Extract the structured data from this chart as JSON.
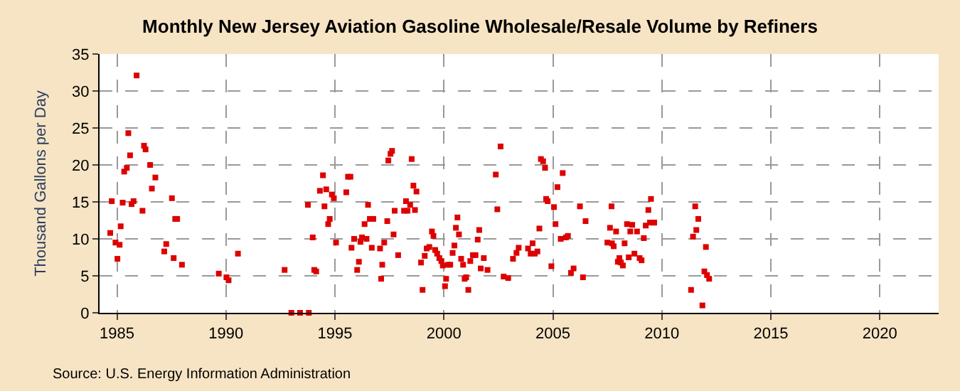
{
  "chart_data": {
    "type": "scatter",
    "title": "Monthly New Jersey Aviation Gasoline Wholesale/Resale Volume by Refiners",
    "ylabel": "Thousand Gallons per Day",
    "annotations": [
      "Source: U.S. Energy Information Administration"
    ],
    "xlim": [
      1984.2,
      2022.7
    ],
    "xticks": [
      1985,
      1990,
      1995,
      2000,
      2005,
      2010,
      2015,
      2020
    ],
    "ylim": [
      0,
      35
    ],
    "yticks": [
      0,
      5,
      10,
      15,
      20,
      25,
      30,
      35
    ],
    "grid": true,
    "marker": "square",
    "series": [
      {
        "color": "#dd0000",
        "x": [
          1984.69,
          1984.76,
          1984.93,
          1985.02,
          1985.12,
          1985.17,
          1985.26,
          1985.33,
          1985.45,
          1985.52,
          1985.6,
          1985.67,
          1985.76,
          1985.9,
          1986.17,
          1986.24,
          1986.31,
          1986.52,
          1986.6,
          1986.76,
          1987.17,
          1987.26,
          1987.52,
          1987.6,
          1987.67,
          1987.76,
          1987.98,
          1989.67,
          1990.02,
          1990.12,
          1990.55,
          1992.69,
          1993.0,
          1993.4,
          1993.76,
          1993.8,
          1993.98,
          1994.05,
          1994.14,
          1994.31,
          1994.45,
          1994.52,
          1994.6,
          1994.69,
          1994.76,
          1994.86,
          1994.95,
          1995.05,
          1995.52,
          1995.6,
          1995.71,
          1995.76,
          1995.88,
          1996.02,
          1996.1,
          1996.17,
          1996.24,
          1996.36,
          1996.45,
          1996.52,
          1996.6,
          1996.69,
          1996.76,
          1997.07,
          1997.12,
          1997.17,
          1997.26,
          1997.4,
          1997.45,
          1997.55,
          1997.62,
          1997.69,
          1997.74,
          1997.9,
          1998.17,
          1998.26,
          1998.33,
          1998.45,
          1998.52,
          1998.6,
          1998.67,
          1998.74,
          1998.95,
          1999.02,
          1999.12,
          1999.21,
          1999.33,
          1999.45,
          1999.52,
          1999.6,
          1999.69,
          1999.79,
          1999.88,
          1999.95,
          2000.05,
          2000.1,
          2000.19,
          2000.29,
          2000.4,
          2000.48,
          2000.55,
          2000.62,
          2000.69,
          2000.79,
          2000.88,
          2000.95,
          2001.02,
          2001.12,
          2001.21,
          2001.33,
          2001.45,
          2001.55,
          2001.62,
          2001.69,
          2001.83,
          2002.0,
          2002.38,
          2002.45,
          2002.6,
          2002.74,
          2002.95,
          2003.17,
          2003.33,
          2003.43,
          2003.86,
          2003.98,
          2004.07,
          2004.17,
          2004.29,
          2004.38,
          2004.45,
          2004.55,
          2004.64,
          2004.69,
          2004.76,
          2004.93,
          2005.05,
          2005.12,
          2005.21,
          2005.36,
          2005.45,
          2005.6,
          2005.69,
          2005.83,
          2005.95,
          2006.24,
          2006.38,
          2006.5,
          2007.5,
          2007.62,
          2007.69,
          2007.71,
          2007.79,
          2007.9,
          2007.98,
          2008.05,
          2008.12,
          2008.21,
          2008.29,
          2008.4,
          2008.48,
          2008.55,
          2008.64,
          2008.74,
          2008.86,
          2008.98,
          2009.07,
          2009.17,
          2009.26,
          2009.38,
          2009.45,
          2009.5,
          2009.6,
          2009.65,
          2011.34,
          2011.43,
          2011.53,
          2011.58,
          2011.67,
          2011.86,
          2011.95,
          2012.02,
          2012.07,
          2012.17
        ],
        "values": [
          10.8,
          15.1,
          9.5,
          7.3,
          9.2,
          11.7,
          14.9,
          19.1,
          19.6,
          24.3,
          21.3,
          14.7,
          15.1,
          32.1,
          13.8,
          22.6,
          22.1,
          20.0,
          16.8,
          18.3,
          8.3,
          9.3,
          15.5,
          7.4,
          12.7,
          12.7,
          6.5,
          5.3,
          4.8,
          4.4,
          8.0,
          5.8,
          0,
          0,
          14.6,
          0,
          10.2,
          5.8,
          5.6,
          16.5,
          18.6,
          14.4,
          16.7,
          12.0,
          12.7,
          16.0,
          15.5,
          9.5,
          16.3,
          18.4,
          18.4,
          8.8,
          10.0,
          5.8,
          6.9,
          9.6,
          10.2,
          12.0,
          10.0,
          14.6,
          12.7,
          8.8,
          12.7,
          8.7,
          4.6,
          6.5,
          9.5,
          12.4,
          20.6,
          21.5,
          21.9,
          10.6,
          13.8,
          7.8,
          13.8,
          15.1,
          13.8,
          14.6,
          20.8,
          17.2,
          13.9,
          16.4,
          6.8,
          3.1,
          7.7,
          8.7,
          8.9,
          11.0,
          10.4,
          8.5,
          8.0,
          7.4,
          7.0,
          6.4,
          3.6,
          4.6,
          6.5,
          6.5,
          8.1,
          9.1,
          11.5,
          12.9,
          10.6,
          7.3,
          6.5,
          4.6,
          4.8,
          3.1,
          7.0,
          7.8,
          7.8,
          9.9,
          11.2,
          6.0,
          7.4,
          5.8,
          18.7,
          14.0,
          22.5,
          4.9,
          4.7,
          7.3,
          8.1,
          8.8,
          8.7,
          8.0,
          9.4,
          8.0,
          8.3,
          11.4,
          20.8,
          20.5,
          19.6,
          15.4,
          15.1,
          6.3,
          14.3,
          12.0,
          17.0,
          10.0,
          18.9,
          10.2,
          10.4,
          5.4,
          6.0,
          14.4,
          4.8,
          12.4,
          9.5,
          11.5,
          14.4,
          9.4,
          9.0,
          11.0,
          6.9,
          7.4,
          6.8,
          6.4,
          9.4,
          12.0,
          7.5,
          11.0,
          11.9,
          8.0,
          11.0,
          7.4,
          7.1,
          10.1,
          11.8,
          13.9,
          12.2,
          15.4,
          12.2,
          12.2,
          3.1,
          10.3,
          14.4,
          11.2,
          12.7,
          1.0,
          5.6,
          8.9,
          5.1,
          4.6
        ]
      }
    ]
  }
}
